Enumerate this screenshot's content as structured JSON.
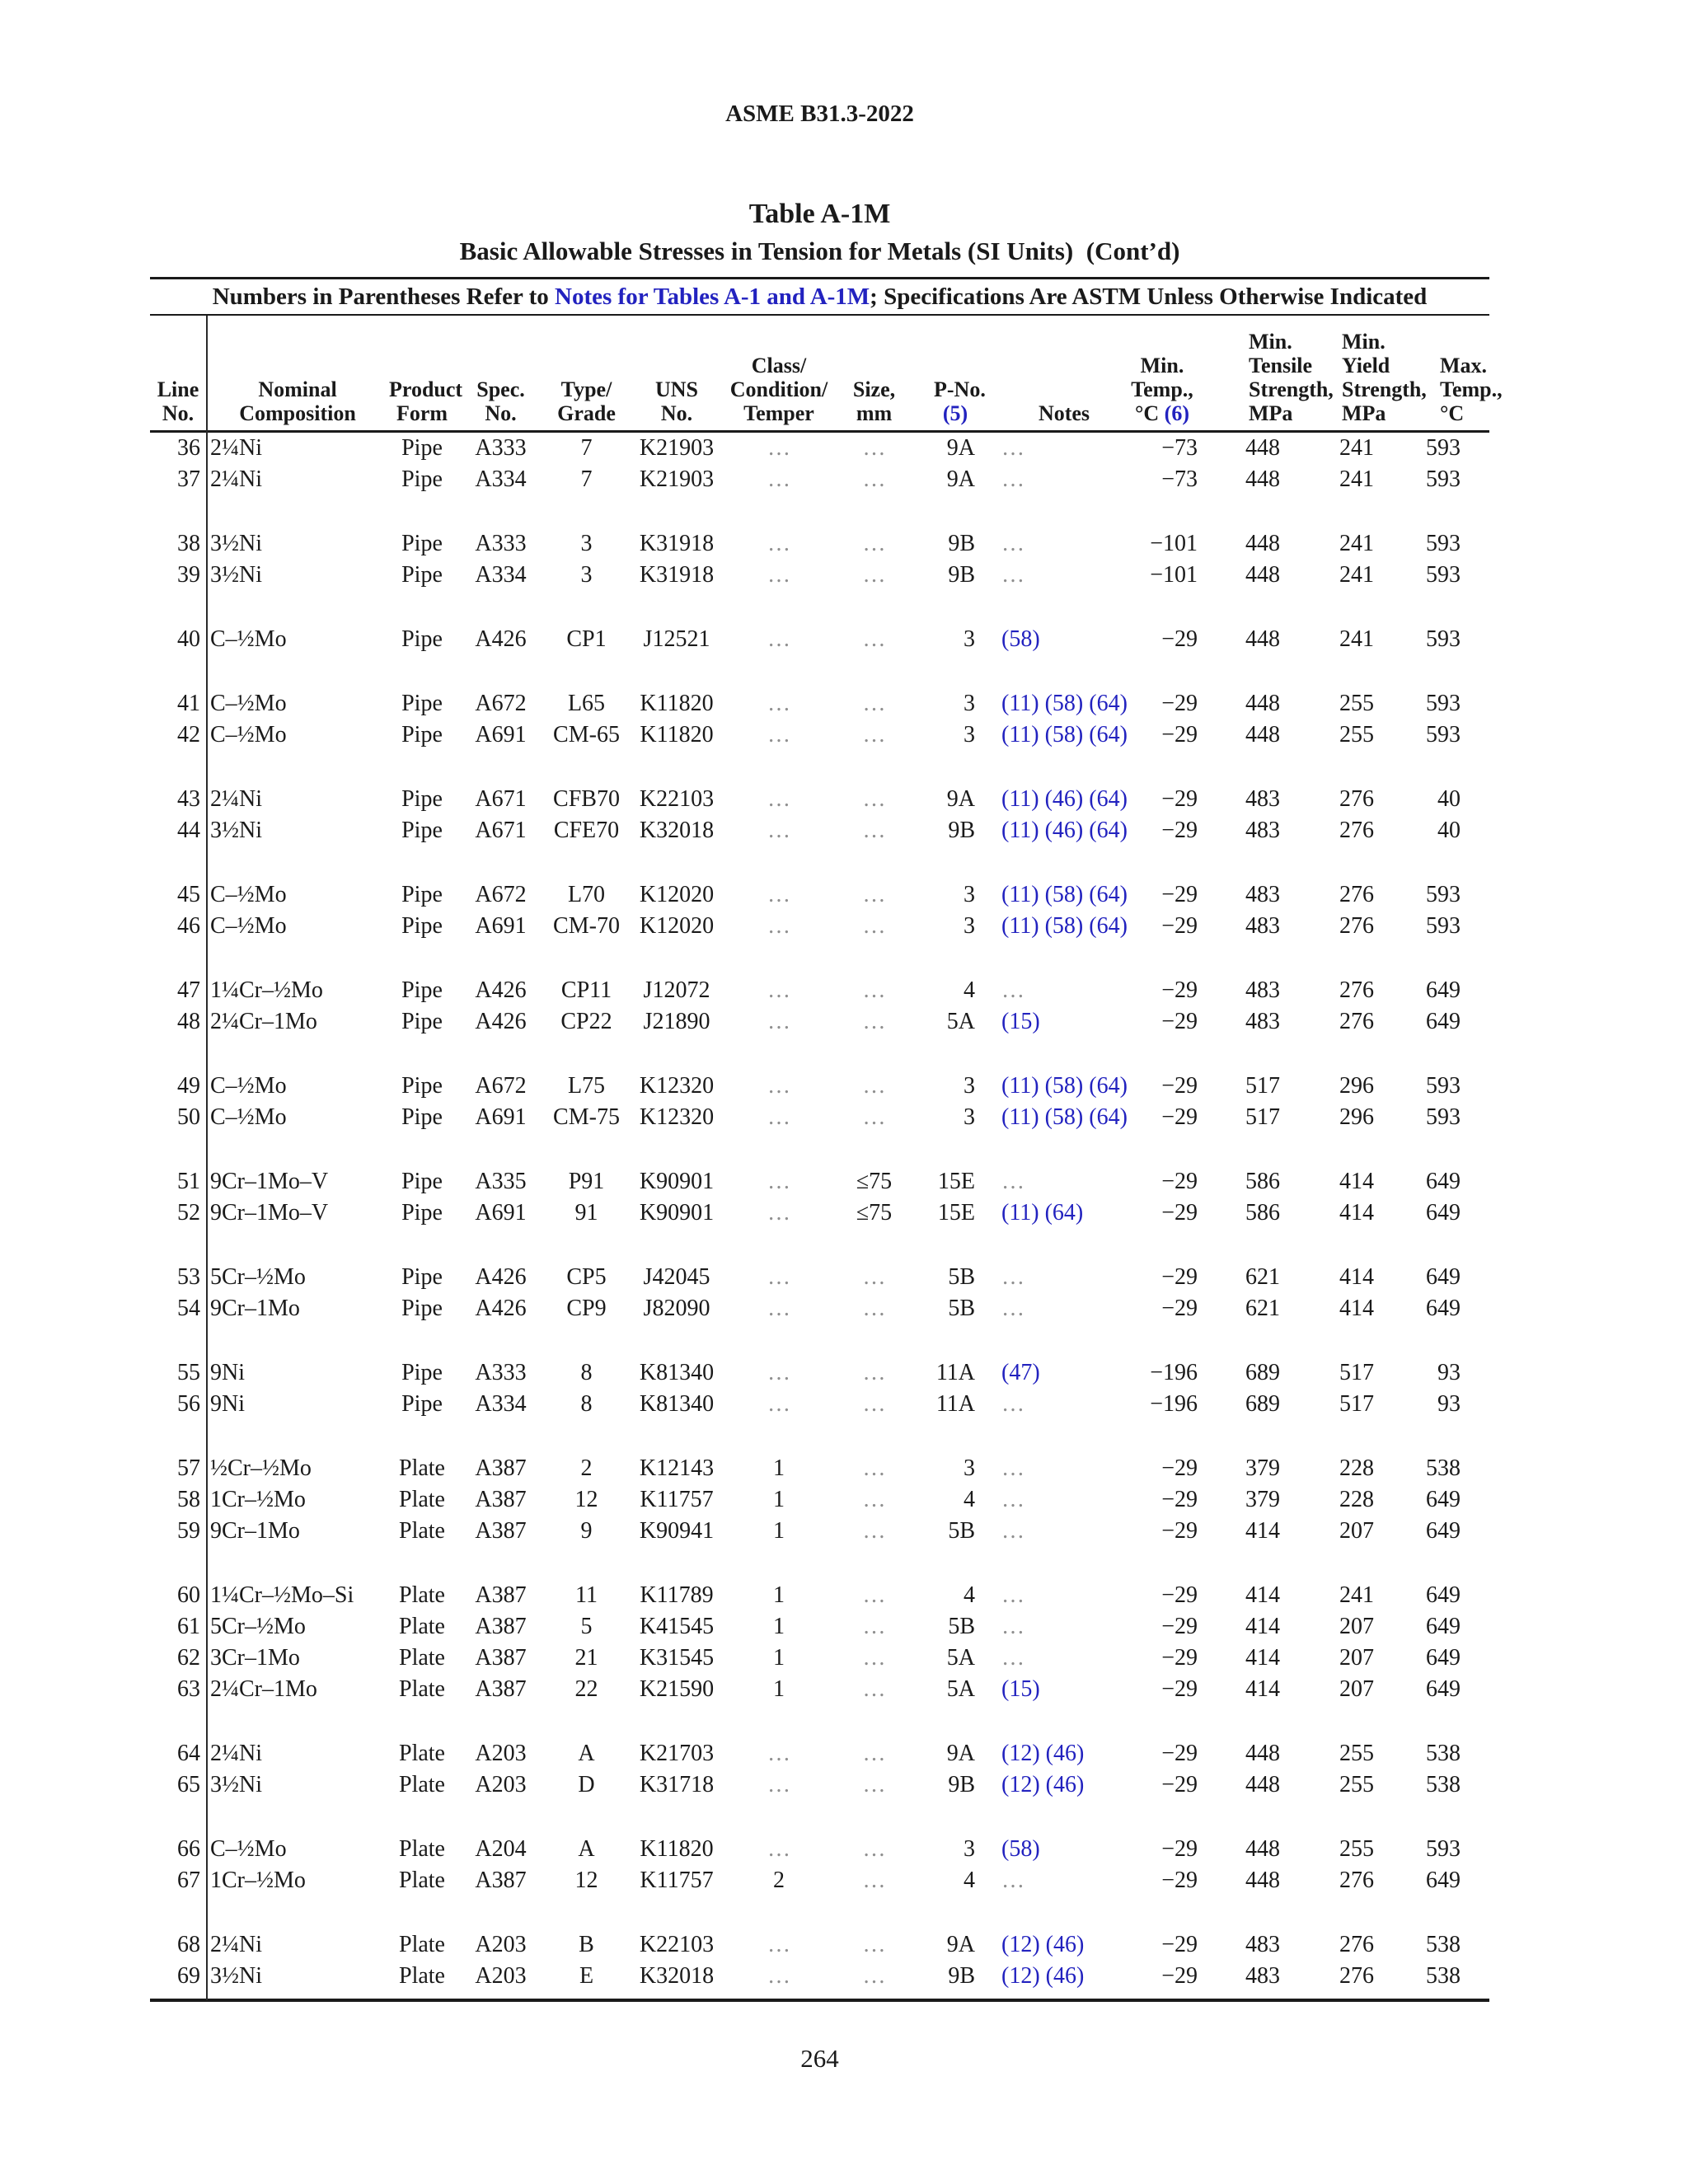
{
  "page": {
    "doc_ref": "ASME B31.3-2022",
    "page_number": "264"
  },
  "table": {
    "title": "Table A-1M",
    "subtitle": "Basic Allowable Stresses in Tension for Metals (SI Units)  (Cont’d)",
    "banner": {
      "prefix": "Numbers in Parentheses Refer to ",
      "link": "Notes for Tables A-1 and A-1M",
      "suffix": "; Specifications Are ASTM Unless Otherwise Indicated"
    },
    "dots_char": "…",
    "headers": {
      "line": {
        "l0": "Line",
        "l1": "No."
      },
      "comp": {
        "l0": "Nominal",
        "l1": "Composition"
      },
      "form": {
        "l0": "Product",
        "l1": "Form"
      },
      "spec": {
        "l0": "Spec.",
        "l1": "No."
      },
      "type": {
        "l0": "Type/",
        "l1": "Grade"
      },
      "uns": {
        "l0": "UNS",
        "l1": "No."
      },
      "cls": {
        "l0": "Class/",
        "l1": "Condition/",
        "l2": "Temper"
      },
      "size": {
        "l0": "Size,",
        "l1": "mm"
      },
      "pno": {
        "l0": "P-No.",
        "l1_blue": "(5)"
      },
      "notes": {
        "l0": "Notes"
      },
      "mintemp": {
        "l0": "Min.",
        "l1": "Temp.,",
        "l2a": "°C ",
        "l2b_blue": "(6)"
      },
      "tensile": {
        "l0": "Min.",
        "l1": "Tensile",
        "l2": "Strength,",
        "l3": "MPa"
      },
      "yield": {
        "l0": "Min.",
        "l1": "Yield",
        "l2": "Strength,",
        "l3": "MPa"
      },
      "maxtemp": {
        "l0": "Max.",
        "l1": "Temp.,",
        "l2": "°C"
      }
    },
    "groups": [
      [
        {
          "line": "36",
          "comp": "2¼Ni",
          "form": "Pipe",
          "spec": "A333",
          "type": "7",
          "uns": "K21903",
          "cls": "…",
          "size": "…",
          "pno": "9A",
          "notes": "…",
          "mintemp": "−73",
          "tensile": "448",
          "yield": "241",
          "maxtemp": "593"
        },
        {
          "line": "37",
          "comp": "2¼Ni",
          "form": "Pipe",
          "spec": "A334",
          "type": "7",
          "uns": "K21903",
          "cls": "…",
          "size": "…",
          "pno": "9A",
          "notes": "…",
          "mintemp": "−73",
          "tensile": "448",
          "yield": "241",
          "maxtemp": "593"
        }
      ],
      [
        {
          "line": "38",
          "comp": "3½Ni",
          "form": "Pipe",
          "spec": "A333",
          "type": "3",
          "uns": "K31918",
          "cls": "…",
          "size": "…",
          "pno": "9B",
          "notes": "…",
          "mintemp": "−101",
          "tensile": "448",
          "yield": "241",
          "maxtemp": "593"
        },
        {
          "line": "39",
          "comp": "3½Ni",
          "form": "Pipe",
          "spec": "A334",
          "type": "3",
          "uns": "K31918",
          "cls": "…",
          "size": "…",
          "pno": "9B",
          "notes": "…",
          "mintemp": "−101",
          "tensile": "448",
          "yield": "241",
          "maxtemp": "593"
        }
      ],
      [
        {
          "line": "40",
          "comp": "C–½Mo",
          "form": "Pipe",
          "spec": "A426",
          "type": "CP1",
          "uns": "J12521",
          "cls": "…",
          "size": "…",
          "pno": "3",
          "notes": "(58)",
          "mintemp": "−29",
          "tensile": "448",
          "yield": "241",
          "maxtemp": "593"
        }
      ],
      [
        {
          "line": "41",
          "comp": "C–½Mo",
          "form": "Pipe",
          "spec": "A672",
          "type": "L65",
          "uns": "K11820",
          "cls": "…",
          "size": "…",
          "pno": "3",
          "notes": "(11) (58) (64)",
          "mintemp": "−29",
          "tensile": "448",
          "yield": "255",
          "maxtemp": "593"
        },
        {
          "line": "42",
          "comp": "C–½Mo",
          "form": "Pipe",
          "spec": "A691",
          "type": "CM-65",
          "uns": "K11820",
          "cls": "…",
          "size": "…",
          "pno": "3",
          "notes": "(11) (58) (64)",
          "mintemp": "−29",
          "tensile": "448",
          "yield": "255",
          "maxtemp": "593"
        }
      ],
      [
        {
          "line": "43",
          "comp": "2¼Ni",
          "form": "Pipe",
          "spec": "A671",
          "type": "CFB70",
          "uns": "K22103",
          "cls": "…",
          "size": "…",
          "pno": "9A",
          "notes": "(11) (46) (64)",
          "mintemp": "−29",
          "tensile": "483",
          "yield": "276",
          "maxtemp": "40"
        },
        {
          "line": "44",
          "comp": "3½Ni",
          "form": "Pipe",
          "spec": "A671",
          "type": "CFE70",
          "uns": "K32018",
          "cls": "…",
          "size": "…",
          "pno": "9B",
          "notes": "(11) (46) (64)",
          "mintemp": "−29",
          "tensile": "483",
          "yield": "276",
          "maxtemp": "40"
        }
      ],
      [
        {
          "line": "45",
          "comp": "C–½Mo",
          "form": "Pipe",
          "spec": "A672",
          "type": "L70",
          "uns": "K12020",
          "cls": "…",
          "size": "…",
          "pno": "3",
          "notes": "(11) (58) (64)",
          "mintemp": "−29",
          "tensile": "483",
          "yield": "276",
          "maxtemp": "593"
        },
        {
          "line": "46",
          "comp": "C–½Mo",
          "form": "Pipe",
          "spec": "A691",
          "type": "CM-70",
          "uns": "K12020",
          "cls": "…",
          "size": "…",
          "pno": "3",
          "notes": "(11) (58) (64)",
          "mintemp": "−29",
          "tensile": "483",
          "yield": "276",
          "maxtemp": "593"
        }
      ],
      [
        {
          "line": "47",
          "comp": "1¼Cr–½Mo",
          "form": "Pipe",
          "spec": "A426",
          "type": "CP11",
          "uns": "J12072",
          "cls": "…",
          "size": "…",
          "pno": "4",
          "notes": "…",
          "mintemp": "−29",
          "tensile": "483",
          "yield": "276",
          "maxtemp": "649"
        },
        {
          "line": "48",
          "comp": "2¼Cr–1Mo",
          "form": "Pipe",
          "spec": "A426",
          "type": "CP22",
          "uns": "J21890",
          "cls": "…",
          "size": "…",
          "pno": "5A",
          "notes": "(15)",
          "mintemp": "−29",
          "tensile": "483",
          "yield": "276",
          "maxtemp": "649"
        }
      ],
      [
        {
          "line": "49",
          "comp": "C–½Mo",
          "form": "Pipe",
          "spec": "A672",
          "type": "L75",
          "uns": "K12320",
          "cls": "…",
          "size": "…",
          "pno": "3",
          "notes": "(11) (58) (64)",
          "mintemp": "−29",
          "tensile": "517",
          "yield": "296",
          "maxtemp": "593"
        },
        {
          "line": "50",
          "comp": "C–½Mo",
          "form": "Pipe",
          "spec": "A691",
          "type": "CM-75",
          "uns": "K12320",
          "cls": "…",
          "size": "…",
          "pno": "3",
          "notes": "(11) (58) (64)",
          "mintemp": "−29",
          "tensile": "517",
          "yield": "296",
          "maxtemp": "593"
        }
      ],
      [
        {
          "line": "51",
          "comp": "9Cr–1Mo–V",
          "form": "Pipe",
          "spec": "A335",
          "type": "P91",
          "uns": "K90901",
          "cls": "…",
          "size": "≤75",
          "pno": "15E",
          "notes": "…",
          "mintemp": "−29",
          "tensile": "586",
          "yield": "414",
          "maxtemp": "649"
        },
        {
          "line": "52",
          "comp": "9Cr–1Mo–V",
          "form": "Pipe",
          "spec": "A691",
          "type": "91",
          "uns": "K90901",
          "cls": "…",
          "size": "≤75",
          "pno": "15E",
          "notes": "(11) (64)",
          "mintemp": "−29",
          "tensile": "586",
          "yield": "414",
          "maxtemp": "649"
        }
      ],
      [
        {
          "line": "53",
          "comp": "5Cr–½Mo",
          "form": "Pipe",
          "spec": "A426",
          "type": "CP5",
          "uns": "J42045",
          "cls": "…",
          "size": "…",
          "pno": "5B",
          "notes": "…",
          "mintemp": "−29",
          "tensile": "621",
          "yield": "414",
          "maxtemp": "649"
        },
        {
          "line": "54",
          "comp": "9Cr–1Mo",
          "form": "Pipe",
          "spec": "A426",
          "type": "CP9",
          "uns": "J82090",
          "cls": "…",
          "size": "…",
          "pno": "5B",
          "notes": "…",
          "mintemp": "−29",
          "tensile": "621",
          "yield": "414",
          "maxtemp": "649"
        }
      ],
      [
        {
          "line": "55",
          "comp": "9Ni",
          "form": "Pipe",
          "spec": "A333",
          "type": "8",
          "uns": "K81340",
          "cls": "…",
          "size": "…",
          "pno": "11A",
          "notes": "(47)",
          "mintemp": "−196",
          "tensile": "689",
          "yield": "517",
          "maxtemp": "93"
        },
        {
          "line": "56",
          "comp": "9Ni",
          "form": "Pipe",
          "spec": "A334",
          "type": "8",
          "uns": "K81340",
          "cls": "…",
          "size": "…",
          "pno": "11A",
          "notes": "…",
          "mintemp": "−196",
          "tensile": "689",
          "yield": "517",
          "maxtemp": "93"
        }
      ],
      [
        {
          "line": "57",
          "comp": "½Cr–½Mo",
          "form": "Plate",
          "spec": "A387",
          "type": "2",
          "uns": "K12143",
          "cls": "1",
          "size": "…",
          "pno": "3",
          "notes": "…",
          "mintemp": "−29",
          "tensile": "379",
          "yield": "228",
          "maxtemp": "538"
        },
        {
          "line": "58",
          "comp": "1Cr–½Mo",
          "form": "Plate",
          "spec": "A387",
          "type": "12",
          "uns": "K11757",
          "cls": "1",
          "size": "…",
          "pno": "4",
          "notes": "…",
          "mintemp": "−29",
          "tensile": "379",
          "yield": "228",
          "maxtemp": "649"
        },
        {
          "line": "59",
          "comp": "9Cr–1Mo",
          "form": "Plate",
          "spec": "A387",
          "type": "9",
          "uns": "K90941",
          "cls": "1",
          "size": "…",
          "pno": "5B",
          "notes": "…",
          "mintemp": "−29",
          "tensile": "414",
          "yield": "207",
          "maxtemp": "649"
        }
      ],
      [
        {
          "line": "60",
          "comp": "1¼Cr–½Mo–Si",
          "form": "Plate",
          "spec": "A387",
          "type": "11",
          "uns": "K11789",
          "cls": "1",
          "size": "…",
          "pno": "4",
          "notes": "…",
          "mintemp": "−29",
          "tensile": "414",
          "yield": "241",
          "maxtemp": "649"
        },
        {
          "line": "61",
          "comp": "5Cr–½Mo",
          "form": "Plate",
          "spec": "A387",
          "type": "5",
          "uns": "K41545",
          "cls": "1",
          "size": "…",
          "pno": "5B",
          "notes": "…",
          "mintemp": "−29",
          "tensile": "414",
          "yield": "207",
          "maxtemp": "649"
        },
        {
          "line": "62",
          "comp": "3Cr–1Mo",
          "form": "Plate",
          "spec": "A387",
          "type": "21",
          "uns": "K31545",
          "cls": "1",
          "size": "…",
          "pno": "5A",
          "notes": "…",
          "mintemp": "−29",
          "tensile": "414",
          "yield": "207",
          "maxtemp": "649"
        },
        {
          "line": "63",
          "comp": "2¼Cr–1Mo",
          "form": "Plate",
          "spec": "A387",
          "type": "22",
          "uns": "K21590",
          "cls": "1",
          "size": "…",
          "pno": "5A",
          "notes": "(15)",
          "mintemp": "−29",
          "tensile": "414",
          "yield": "207",
          "maxtemp": "649"
        }
      ],
      [
        {
          "line": "64",
          "comp": "2¼Ni",
          "form": "Plate",
          "spec": "A203",
          "type": "A",
          "uns": "K21703",
          "cls": "…",
          "size": "…",
          "pno": "9A",
          "notes": "(12) (46)",
          "mintemp": "−29",
          "tensile": "448",
          "yield": "255",
          "maxtemp": "538"
        },
        {
          "line": "65",
          "comp": "3½Ni",
          "form": "Plate",
          "spec": "A203",
          "type": "D",
          "uns": "K31718",
          "cls": "…",
          "size": "…",
          "pno": "9B",
          "notes": "(12) (46)",
          "mintemp": "−29",
          "tensile": "448",
          "yield": "255",
          "maxtemp": "538"
        }
      ],
      [
        {
          "line": "66",
          "comp": "C–½Mo",
          "form": "Plate",
          "spec": "A204",
          "type": "A",
          "uns": "K11820",
          "cls": "…",
          "size": "…",
          "pno": "3",
          "notes": "(58)",
          "mintemp": "−29",
          "tensile": "448",
          "yield": "255",
          "maxtemp": "593"
        },
        {
          "line": "67",
          "comp": "1Cr–½Mo",
          "form": "Plate",
          "spec": "A387",
          "type": "12",
          "uns": "K11757",
          "cls": "2",
          "size": "…",
          "pno": "4",
          "notes": "…",
          "mintemp": "−29",
          "tensile": "448",
          "yield": "276",
          "maxtemp": "649"
        }
      ],
      [
        {
          "line": "68",
          "comp": "2¼Ni",
          "form": "Plate",
          "spec": "A203",
          "type": "B",
          "uns": "K22103",
          "cls": "…",
          "size": "…",
          "pno": "9A",
          "notes": "(12) (46)",
          "mintemp": "−29",
          "tensile": "483",
          "yield": "276",
          "maxtemp": "538"
        },
        {
          "line": "69",
          "comp": "3½Ni",
          "form": "Plate",
          "spec": "A203",
          "type": "E",
          "uns": "K32018",
          "cls": "…",
          "size": "…",
          "pno": "9B",
          "notes": "(12) (46)",
          "mintemp": "−29",
          "tensile": "483",
          "yield": "276",
          "maxtemp": "538"
        }
      ]
    ]
  }
}
